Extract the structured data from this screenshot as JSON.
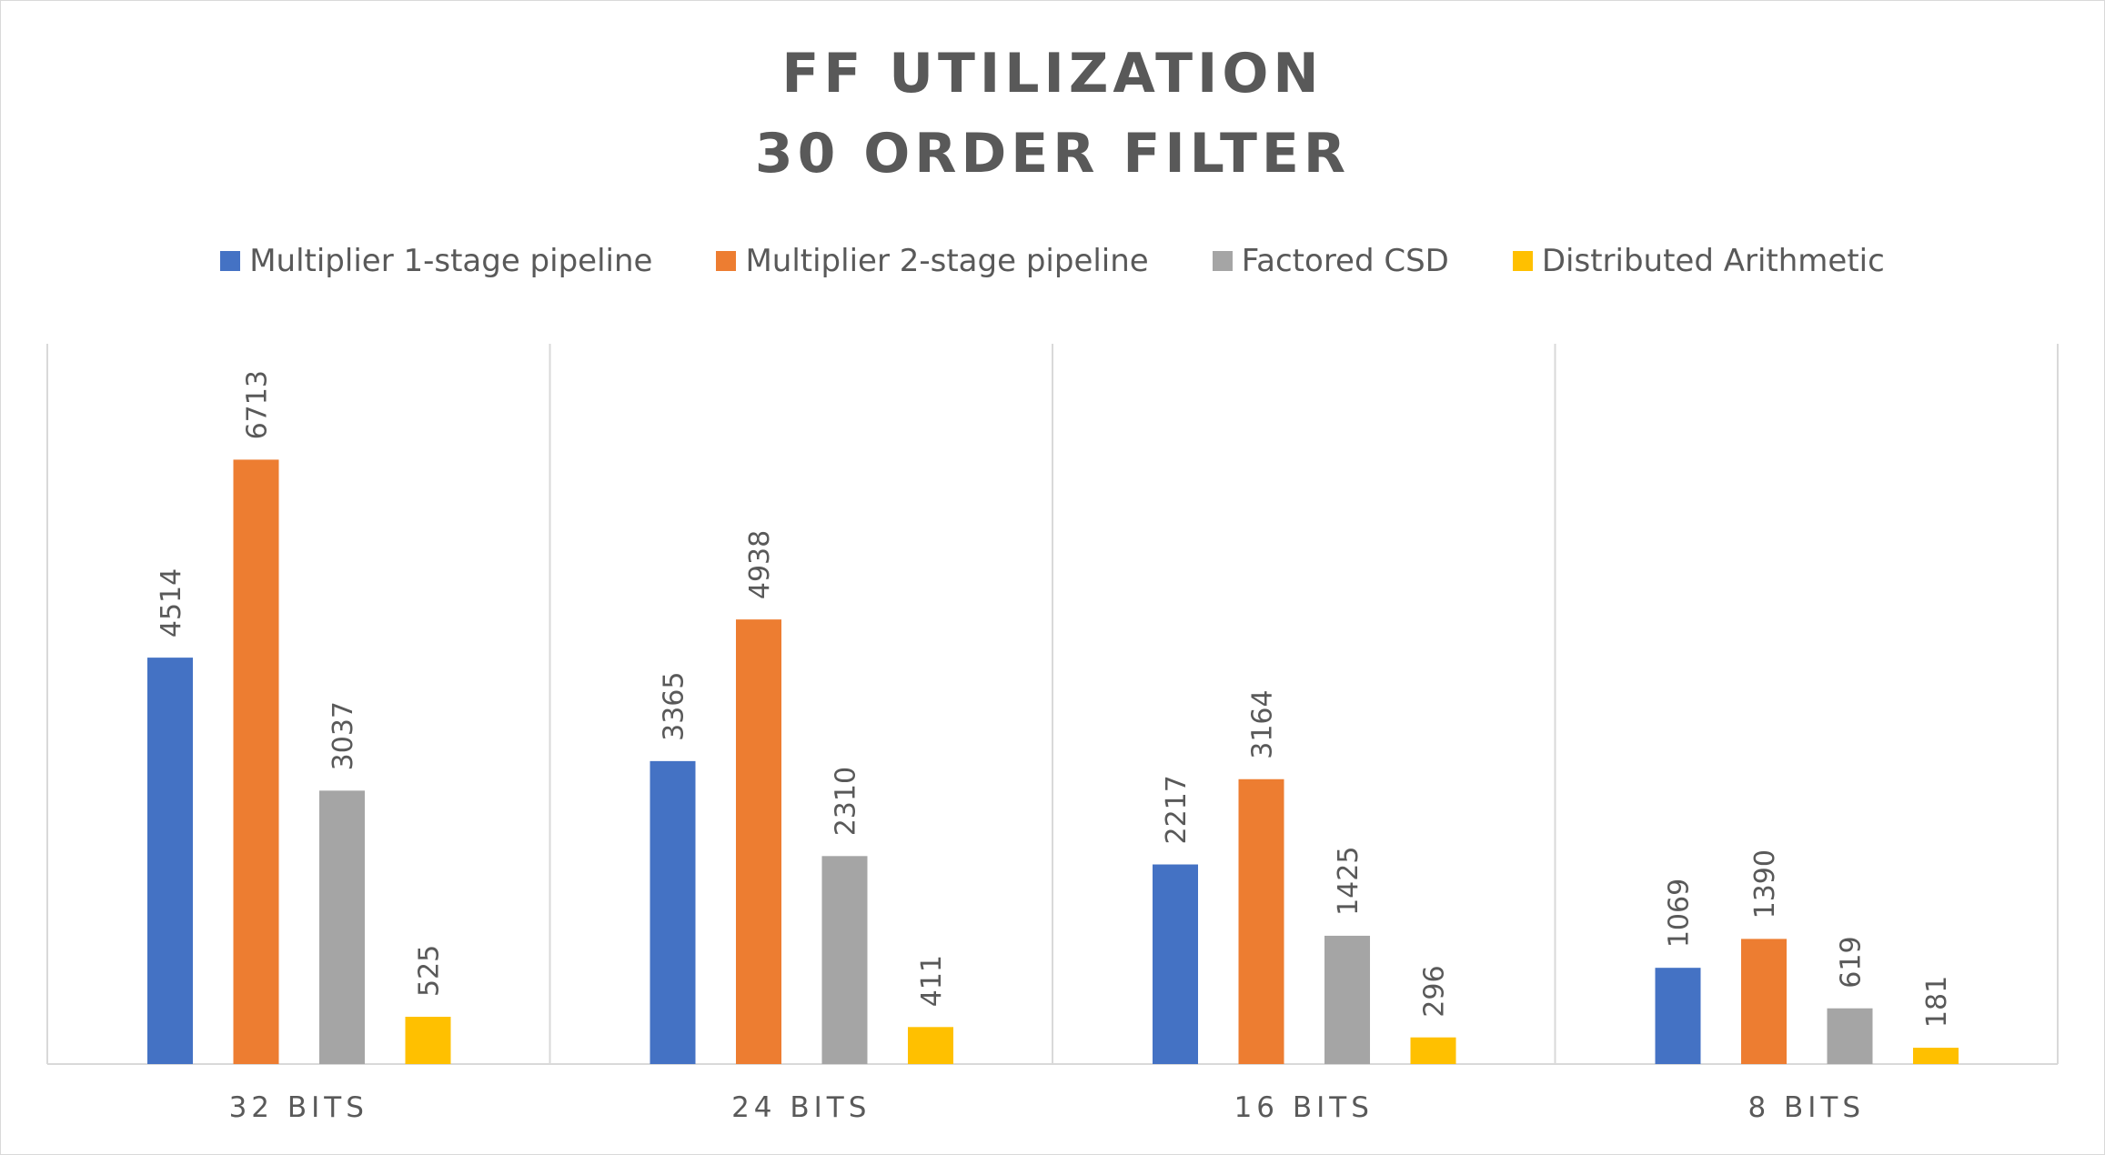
{
  "chart_data": {
    "type": "bar",
    "title_lines": [
      "FF UTILIZATION",
      "30 ORDER FILTER"
    ],
    "categories": [
      "32 BITS",
      "24 BITS",
      "16 BITS",
      "8 BITS"
    ],
    "series": [
      {
        "name": "Multiplier 1-stage pipeline",
        "color": "#4472C4",
        "values": [
          4514,
          3365,
          2217,
          1069
        ]
      },
      {
        "name": "Multiplier 2-stage pipeline",
        "color": "#ED7D31",
        "values": [
          6713,
          4938,
          3164,
          1390
        ]
      },
      {
        "name": "Factored CSD",
        "color": "#A5A5A5",
        "values": [
          3037,
          2310,
          1425,
          619
        ]
      },
      {
        "name": "Distributed Arithmetic",
        "color": "#FFC000",
        "values": [
          525,
          411,
          296,
          181
        ]
      }
    ],
    "ylim": [
      0,
      8000
    ],
    "legend_position": "top",
    "data_labels": true,
    "grid": "vertical category separators only"
  }
}
